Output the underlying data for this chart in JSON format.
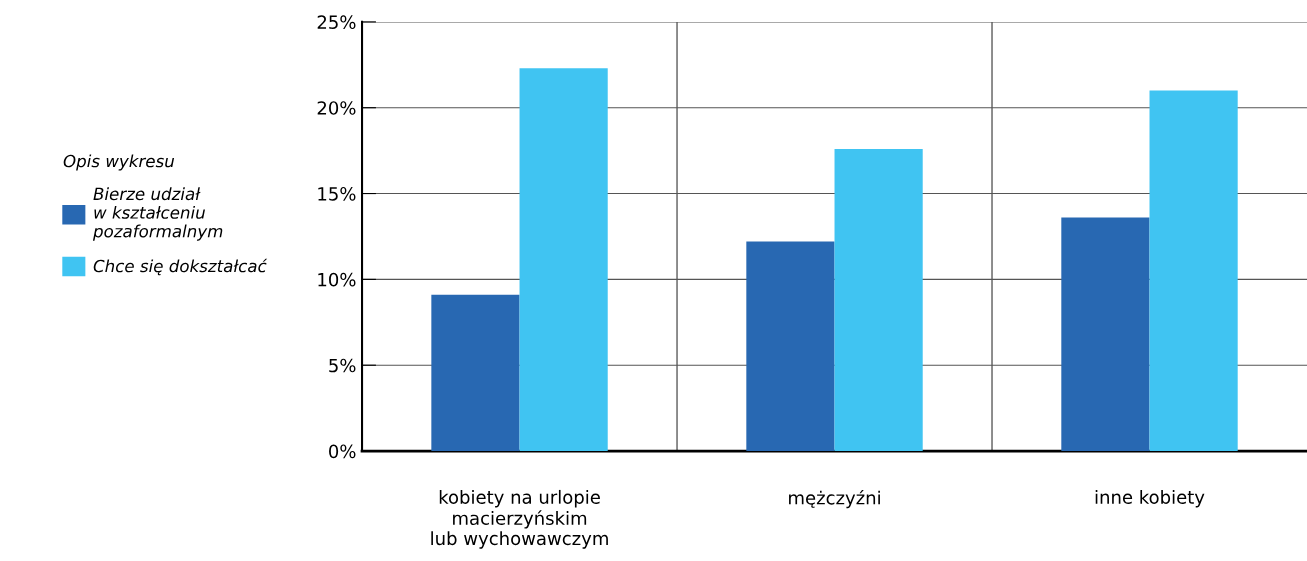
{
  "chart_data": {
    "type": "bar",
    "categories": [
      "kobiety na urlopie\nmacierzyńskim\nlub wychowawczym",
      "mężczyźni",
      "inne kobiety"
    ],
    "series": [
      {
        "name": "Bierze udział\nw kształceniu\npozaformalnym",
        "color": "#2868b2",
        "values": [
          9.1,
          12.2,
          13.6
        ]
      },
      {
        "name": "Chce się dokształcać",
        "color": "#40c4f2",
        "values": [
          22.3,
          17.6,
          21.0
        ]
      }
    ],
    "ylim": [
      0,
      25
    ],
    "yticks": [
      {
        "value": 0,
        "label": "0%"
      },
      {
        "value": 5,
        "label": "5%"
      },
      {
        "value": 10,
        "label": "10%"
      },
      {
        "value": 15,
        "label": "15%"
      },
      {
        "value": 20,
        "label": "20%"
      },
      {
        "value": 25,
        "label": "25%"
      }
    ],
    "grid": true,
    "legend": "left",
    "legend_title": "Opis wykresu"
  }
}
